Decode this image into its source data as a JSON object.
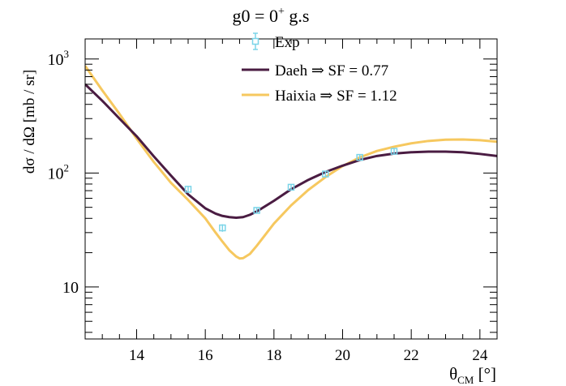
{
  "chart_data": {
    "type": "line",
    "title": {
      "base": "g0 = 0",
      "sup": "+",
      "rest": " g.s"
    },
    "xlabel": {
      "base": "θ",
      "sub": "CM",
      "rest": " [°]"
    },
    "ylabel": "dσ / dΩ [mb / sr]",
    "xlim": [
      12.5,
      24.5
    ],
    "ylim": [
      3.5,
      1500
    ],
    "yscale": "log",
    "grid": false,
    "legend_position": "top-center",
    "x_ticks": [
      14,
      16,
      18,
      20,
      22,
      24
    ],
    "y_major_ticks": [
      10,
      100,
      1000
    ],
    "y_tick_labels": [
      {
        "value": 10,
        "base": "10",
        "sup": ""
      },
      {
        "value": 100,
        "base": "10",
        "sup": "2"
      },
      {
        "value": 1000,
        "base": "10",
        "sup": "3"
      }
    ],
    "legend": [
      {
        "label": "Exp",
        "kind": "marker"
      },
      {
        "label": "Daeh ⇒ SF = 0.77",
        "kind": "line"
      },
      {
        "label": "Haixia ⇒ SF = 1.12",
        "kind": "line"
      }
    ],
    "experiment": {
      "name": "Exp",
      "color": "#7ad4e8",
      "points": [
        {
          "x": 15.5,
          "y": 72,
          "err": 5
        },
        {
          "x": 16.5,
          "y": 33,
          "err": 2.5
        },
        {
          "x": 17.5,
          "y": 47,
          "err": 3
        },
        {
          "x": 18.5,
          "y": 75,
          "err": 4
        },
        {
          "x": 19.5,
          "y": 98,
          "err": 5
        },
        {
          "x": 20.5,
          "y": 137,
          "err": 7
        },
        {
          "x": 21.5,
          "y": 155,
          "err": 8
        }
      ]
    },
    "series": [
      {
        "name": "Daeh ⇒ SF = 0.77",
        "color": "#4a1c42",
        "x": [
          12.5,
          13.0,
          13.5,
          14.0,
          14.5,
          15.0,
          15.5,
          16.0,
          16.3,
          16.5,
          16.7,
          16.9,
          17.1,
          17.3,
          17.5,
          18.0,
          18.5,
          19.0,
          19.5,
          20.0,
          20.5,
          21.0,
          21.5,
          22.0,
          22.5,
          23.0,
          23.5,
          24.0,
          24.5
        ],
        "y": [
          600,
          430,
          300,
          210,
          140,
          95,
          65,
          49,
          44,
          42,
          41,
          40.5,
          41,
          43,
          46,
          57,
          72,
          87,
          102,
          116,
          130,
          141,
          148,
          152,
          154,
          154,
          152,
          147,
          141
        ]
      },
      {
        "name": "Haixia ⇒ SF = 1.12",
        "color": "#f6c85f",
        "x": [
          12.5,
          13.0,
          13.5,
          14.0,
          14.5,
          15.0,
          15.5,
          16.0,
          16.3,
          16.5,
          16.7,
          16.9,
          17.0,
          17.1,
          17.3,
          17.5,
          18.0,
          18.5,
          19.0,
          19.5,
          20.0,
          20.5,
          21.0,
          21.5,
          22.0,
          22.5,
          23.0,
          23.5,
          24.0,
          24.5
        ],
        "y": [
          870,
          530,
          330,
          200,
          125,
          82,
          58,
          40,
          30,
          25,
          21,
          18.5,
          17.8,
          17.9,
          19.5,
          23,
          36,
          52,
          71,
          92,
          115,
          137,
          156,
          170,
          182,
          191,
          196,
          197,
          194,
          188
        ]
      }
    ]
  }
}
